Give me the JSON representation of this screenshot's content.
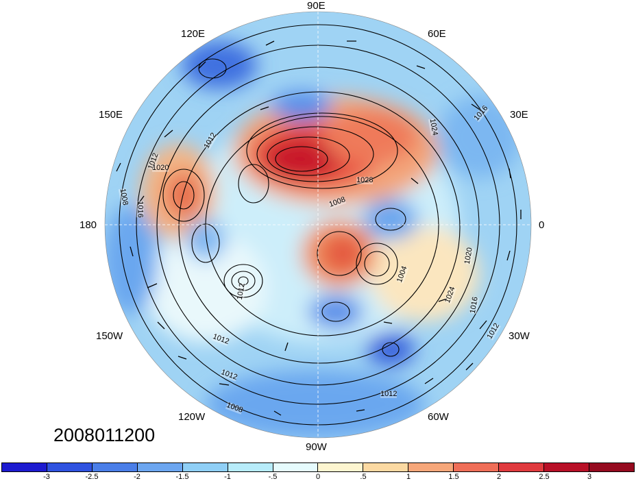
{
  "map": {
    "projection": "polar-stereographic-north",
    "longitude_labels": [
      "90E",
      "60E",
      "30E",
      "0",
      "30W",
      "60W",
      "90W",
      "120W",
      "150W",
      "180",
      "150E",
      "120E"
    ],
    "contour_labels": [
      "1012",
      "1020",
      "1016",
      "1008",
      "1012",
      "1028",
      "1008",
      "1024",
      "1016",
      "1020",
      "1024",
      "1016",
      "1012",
      "1012",
      "1008",
      "1012",
      "1004",
      "1012",
      "1012"
    ],
    "date": "2008011200"
  },
  "colorbar": {
    "tick_labels": [
      "-3",
      "-2.5",
      "-2",
      "-1.5",
      "-1",
      "-.5",
      "0",
      ".5",
      "1",
      "1.5",
      "2",
      "2.5",
      "3"
    ],
    "colors": [
      "#1d1bd0",
      "#2f52e0",
      "#4a7ee8",
      "#6ca6f0",
      "#8fcff6",
      "#b7ecfa",
      "#e6fbfd",
      "#fdf5d0",
      "#fbd9a2",
      "#f6a77a",
      "#ef6e58",
      "#e03a3e",
      "#b81027",
      "#950a1f"
    ]
  }
}
